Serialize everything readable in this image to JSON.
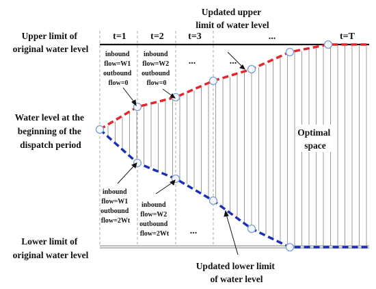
{
  "labels": {
    "upper_original": [
      "Upper limit of",
      "original water level"
    ],
    "lower_original": [
      "Lower limit of",
      "original water level"
    ],
    "start_level": [
      "Water level at the",
      "beginning of the",
      "dispatch period"
    ],
    "updated_upper": [
      "Updated upper",
      "limit of water level"
    ],
    "updated_lower": [
      "Updated lower limit",
      "of water level"
    ],
    "optimal": [
      "Optimal",
      "space"
    ]
  },
  "periods": [
    "t=1",
    "t=2",
    "t=3",
    "...",
    "t=T"
  ],
  "annotations_top": [
    [
      "inbound",
      "flow=W1",
      "outbound",
      "flow=0"
    ],
    [
      "inbound",
      "flow=W2",
      "outbound",
      "flow=0"
    ]
  ],
  "annotations_bottom": [
    [
      "inbound",
      "flow=W1",
      "outbound",
      "flow=2Wt"
    ],
    [
      "inbound",
      "flow=W2",
      "outbound",
      "flow=2Wt"
    ]
  ],
  "ellipses": [
    "...",
    "...",
    "..."
  ],
  "colors": {
    "upper_curve": "#e3262d",
    "lower_curve": "#1c2fb4",
    "node": "#7d9fd0",
    "divider": "#aaaaaa"
  }
}
